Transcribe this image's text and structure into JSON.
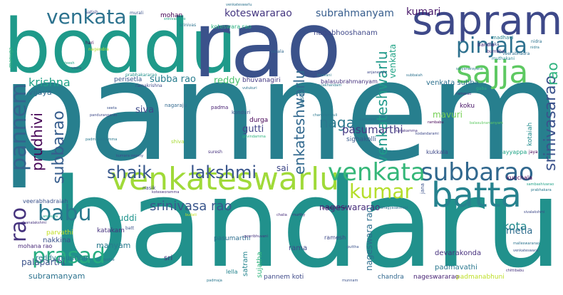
{
  "words": [
    {
      "text": "pannem",
      "color": "#277f8e"
    },
    {
      "text": "bandaru",
      "color": "#21918c"
    },
    {
      "text": "boddu",
      "color": "#1f9a8a"
    },
    {
      "text": "rao",
      "color": "#3b528b"
    },
    {
      "text": "sapram",
      "color": "#3e4989"
    },
    {
      "text": "venkateswarlu",
      "color": "#a0da39"
    },
    {
      "text": "venkata",
      "color": "#2c728e"
    },
    {
      "text": "subbarao",
      "color": "#31688e"
    },
    {
      "text": "batta",
      "color": "#26828e"
    },
    {
      "text": "sajja",
      "color": "#5ec962"
    },
    {
      "text": "pinjala",
      "color": "#2d708e"
    },
    {
      "text": "venkata",
      "color": "#35b779"
    },
    {
      "text": "kumar",
      "color": "#b5de2b"
    },
    {
      "text": "pannem",
      "color": "#33638d"
    },
    {
      "text": "shaik",
      "color": "#38588c"
    },
    {
      "text": "lakshmi",
      "color": "#39558c"
    },
    {
      "text": "babu",
      "color": "#2a788e"
    },
    {
      "text": "prasad",
      "color": "#27ad81"
    },
    {
      "text": "rao",
      "color": "#46337e"
    },
    {
      "text": "subbarao",
      "color": "#365d8d"
    },
    {
      "text": "prudhivi",
      "color": "#440154"
    },
    {
      "text": "krishna",
      "color": "#1fa187"
    },
    {
      "text": "enkateshwarlu",
      "color": "#31688e"
    },
    {
      "text": "venkateshwarlu",
      "color": "#1f998a"
    },
    {
      "text": "srinivasarao",
      "color": "#3b528b"
    },
    {
      "text": "rao",
      "color": "#2db27d"
    },
    {
      "text": "venkata",
      "color": "#20a386"
    },
    {
      "text": "naga",
      "color": "#2a788e"
    },
    {
      "text": "srinivasa rao",
      "color": "#39568c"
    },
    {
      "text": "koteswararao",
      "color": "#453781"
    },
    {
      "text": "subrahmanyam",
      "color": "#365d8d"
    },
    {
      "text": "kumari",
      "color": "#48186a"
    },
    {
      "text": "pasumarthi",
      "color": "#443983"
    },
    {
      "text": "kota",
      "color": "#238a8d"
    },
    {
      "text": "reddy",
      "color": "#4ac16d"
    },
    {
      "text": "subba rao",
      "color": "#287d8e"
    },
    {
      "text": "siva",
      "color": "#3e4989"
    },
    {
      "text": "nageswararao",
      "color": "#472d7b"
    },
    {
      "text": "nageswara rao",
      "color": "#2e6e8e"
    },
    {
      "text": "metla",
      "color": "#2f6c8e"
    },
    {
      "text": "gutti",
      "color": "#414487"
    },
    {
      "text": "sai",
      "color": "#3f4788"
    },
    {
      "text": "buddi",
      "color": "#1f948c"
    },
    {
      "text": "manyam",
      "color": "#297a8e"
    },
    {
      "text": "nagabhooshanam",
      "color": "#3f4889"
    },
    {
      "text": "vijaya",
      "color": "#31688e"
    },
    {
      "text": "mavuri",
      "color": "#75d054"
    },
    {
      "text": "durga",
      "color": "#440154"
    },
    {
      "text": "koku",
      "color": "#481467"
    },
    {
      "text": "reddy munnam",
      "color": "#2a788e"
    },
    {
      "text": "nakkina",
      "color": "#3b528b"
    },
    {
      "text": "palaparthi",
      "color": "#3b528b"
    },
    {
      "text": "subramanyam",
      "color": "#2c728e"
    },
    {
      "text": "sri",
      "color": "#472f7d"
    },
    {
      "text": "satram",
      "color": "#25848e"
    },
    {
      "text": "sujatha",
      "color": "#2fb47c"
    },
    {
      "text": "rama",
      "color": "#3e4989"
    },
    {
      "text": "padmavathi",
      "color": "#2a778e"
    },
    {
      "text": "devarakonda",
      "color": "#46307e"
    },
    {
      "text": "pasumarthi",
      "color": "#2e6e8e"
    },
    {
      "text": "katakam",
      "color": "#46327e"
    },
    {
      "text": "venkata subba",
      "color": "#2d708e"
    },
    {
      "text": "kotaiah",
      "color": "#228c8d"
    },
    {
      "text": "sighakolli",
      "color": "#38588c"
    },
    {
      "text": "mohan",
      "color": "#440154"
    },
    {
      "text": "koteswara rao",
      "color": "#29af7f"
    },
    {
      "text": "perisetla",
      "color": "#39558c"
    },
    {
      "text": "bhuvanagiri",
      "color": "#443983"
    },
    {
      "text": "parvathi",
      "color": "#c2df23"
    },
    {
      "text": "mohana rao",
      "color": "#482878"
    },
    {
      "text": "veerabhadraiah",
      "color": "#3b528b"
    },
    {
      "text": "lella",
      "color": "#25848e"
    },
    {
      "text": "pannem koti",
      "color": "#3e4989"
    },
    {
      "text": "chandra",
      "color": "#31688e"
    },
    {
      "text": "nageswararao",
      "color": "#482475"
    },
    {
      "text": "padmanabhuni",
      "color": "#bddf26"
    },
    {
      "text": "ramesh",
      "color": "#3e4989"
    },
    {
      "text": "kukkala",
      "color": "#3e4989"
    },
    {
      "text": "jana",
      "color": "#3b528b"
    },
    {
      "text": "ayyappa",
      "color": "#20a486"
    },
    {
      "text": "kunchala",
      "color": "#440154"
    },
    {
      "text": "balasubrahmanyam",
      "color": "#46327e"
    },
    {
      "text": "nasika",
      "color": "#2c728e"
    },
    {
      "text": "padma",
      "color": "#482173"
    },
    {
      "text": "nagaraju",
      "color": "#31688e"
    },
    {
      "text": "konduri",
      "color": "#3b528b"
    },
    {
      "text": "shiva",
      "color": "#a8db34"
    },
    {
      "text": "suresh",
      "color": "#46327e"
    },
    {
      "text": "nasik",
      "color": "#3e4989"
    },
    {
      "text": "bandla",
      "color": "#482878"
    },
    {
      "text": "madhavi",
      "color": "#26828e"
    },
    {
      "text": "meka",
      "color": "#3b528b"
    },
    {
      "text": "bumbha",
      "color": "#482878"
    },
    {
      "text": "muthakani",
      "color": "#26828e"
    },
    {
      "text": "veerabhadra",
      "color": "#2e6e8e"
    },
    {
      "text": "prabhakararao",
      "color": "#21918c"
    },
    {
      "text": "ramakrishna",
      "color": "#3e4989"
    },
    {
      "text": "hari",
      "color": "#440154"
    },
    {
      "text": "nagendra",
      "color": "#b5de2b"
    },
    {
      "text": "sarala",
      "color": "#31688e"
    },
    {
      "text": "nidra",
      "color": "#2c728e"
    },
    {
      "text": "murali",
      "color": "#3b528b"
    },
    {
      "text": "satish",
      "color": "#3e4989"
    },
    {
      "text": "srinivas",
      "color": "#2c728e"
    },
    {
      "text": "gaba",
      "color": "#27ad81"
    },
    {
      "text": "manuga",
      "color": "#2db27d"
    },
    {
      "text": "sateesh",
      "color": "#20a386"
    },
    {
      "text": "veera",
      "color": "#3b528b"
    },
    {
      "text": "chandramouli",
      "color": "#2a788e"
    },
    {
      "text": "balasubramanyam",
      "color": "#5ec962"
    },
    {
      "text": "sambashivarao",
      "color": "#1fa187"
    },
    {
      "text": "prabhakara",
      "color": "#2a788e"
    },
    {
      "text": "sivalakshmi",
      "color": "#3e4989"
    },
    {
      "text": "malleswararao",
      "color": "#2c728e"
    },
    {
      "text": "venkateswara",
      "color": "#3b528b"
    },
    {
      "text": "pratap kumar",
      "color": "#440154"
    },
    {
      "text": "bhagyalakshmi",
      "color": "#2e6e8e"
    },
    {
      "text": "dhanalakshmi",
      "color": "#46327e"
    },
    {
      "text": "anasuya",
      "color": "#20a486"
    },
    {
      "text": "budati",
      "color": "#c2df23"
    },
    {
      "text": "murthy",
      "color": "#46327e"
    },
    {
      "text": "puttha",
      "color": "#3b528b"
    },
    {
      "text": "chalia",
      "color": "#472d7b"
    },
    {
      "text": "bodde",
      "color": "#2c728e"
    },
    {
      "text": "padmaja",
      "color": "#2a778e"
    },
    {
      "text": "govindamma",
      "color": "#2db27d"
    },
    {
      "text": "kumara swamy",
      "color": "#3e4989"
    },
    {
      "text": "padmavathamma",
      "color": "#2a788e"
    },
    {
      "text": "kotesworamma",
      "color": "#46327e"
    },
    {
      "text": "pandurangarao",
      "color": "#3e4989"
    },
    {
      "text": "venkateswarlu",
      "color": "#2c728e"
    },
    {
      "text": "srinivasarao",
      "color": "#20a486"
    },
    {
      "text": "satyanarayana",
      "color": "#2a788e"
    },
    {
      "text": "gowribhuvani",
      "color": "#46327e"
    },
    {
      "text": "munnam",
      "color": "#3b528b"
    },
    {
      "text": "bhavani",
      "color": "#2a788e"
    },
    {
      "text": "kanakamma",
      "color": "#46327e"
    },
    {
      "text": "kodandarami",
      "color": "#3e4989"
    },
    {
      "text": "rambabu",
      "color": "#440154"
    },
    {
      "text": "subbaiah",
      "color": "#2c728e"
    },
    {
      "text": "seeta",
      "color": "#3b528b"
    },
    {
      "text": "nidra",
      "color": "#2a788e"
    },
    {
      "text": "ramarao",
      "color": "#46327e"
    },
    {
      "text": "anjaneyulu",
      "color": "#3e4989"
    },
    {
      "text": "jaya",
      "color": "#440154"
    },
    {
      "text": "batt",
      "color": "#3b528b"
    },
    {
      "text": "karunasri",
      "color": "#2c728e"
    },
    {
      "text": "pulakhandam",
      "color": "#2a788e"
    },
    {
      "text": "vutukuri",
      "color": "#2c728e"
    },
    {
      "text": "chittibabu",
      "color": "#46327e"
    }
  ]
}
